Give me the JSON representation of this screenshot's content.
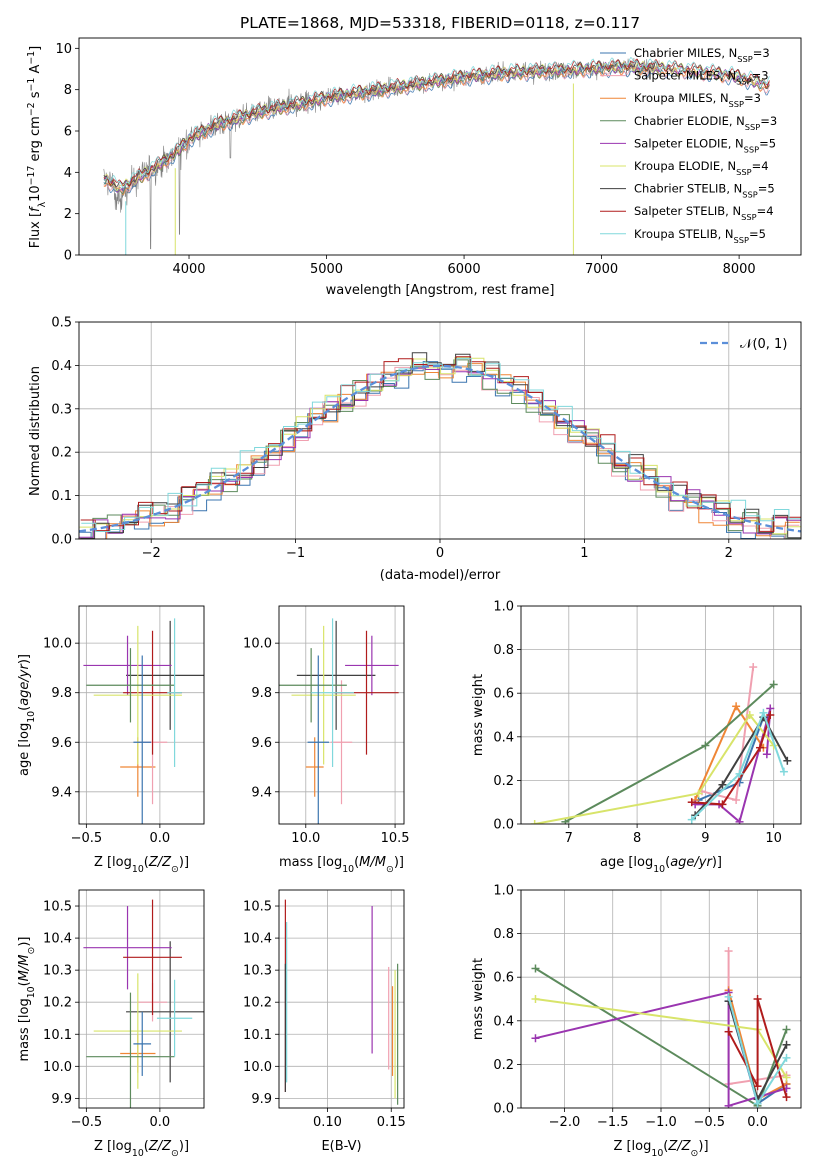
{
  "chart_data": [
    {
      "type": "line",
      "id": "spectrum",
      "title": "PLATE=1868, MJD=53318, FIBERID=0118, z=0.117",
      "xlabel": "wavelength [Angstrom, rest frame]",
      "ylabel": "Flux [f_λ10^−17 erg cm^−2 s^−1 A^−1]",
      "xlim": [
        3200,
        8450
      ],
      "ylim": [
        0,
        10.5
      ],
      "xticks": [
        4000,
        5000,
        6000,
        7000,
        8000
      ],
      "yticks": [
        0,
        2,
        4,
        6,
        8,
        10
      ],
      "legend_position": "right",
      "legend": [
        {
          "label": "Chabrier MILES, N_SSP=3",
          "color": "#3b75af"
        },
        {
          "label": "Salpeter MILES, N_SSP=3",
          "color": "#f0a0b0"
        },
        {
          "label": "Kroupa MILES, N_SSP=3",
          "color": "#ef8636"
        },
        {
          "label": "Chabrier ELODIE, N_SSP=3",
          "color": "#5c8a5c"
        },
        {
          "label": "Salpeter ELODIE, N_SSP=5",
          "color": "#9a35b0"
        },
        {
          "label": "Kroupa ELODIE, N_SSP=4",
          "color": "#d8e46a"
        },
        {
          "label": "Chabrier STELIB, N_SSP=5",
          "color": "#404040"
        },
        {
          "label": "Salpeter STELIB, N_SSP=4",
          "color": "#b01c1c"
        },
        {
          "label": "Kroupa STELIB, N_SSP=5",
          "color": "#80d8dc"
        }
      ],
      "data_color": "#808080",
      "continuum": {
        "x": [
          3380,
          3500,
          3700,
          3900,
          4000,
          4200,
          4500,
          4800,
          5000,
          5200,
          5500,
          5800,
          6000,
          6300,
          6600,
          6900,
          7200,
          7500,
          7800,
          8000,
          8200
        ],
        "y": [
          3.7,
          3.2,
          4.0,
          4.9,
          5.6,
          6.3,
          6.9,
          7.3,
          7.6,
          7.8,
          8.1,
          8.4,
          8.6,
          8.8,
          8.9,
          9.0,
          9.1,
          9.0,
          8.8,
          8.6,
          8.2
        ]
      }
    },
    {
      "type": "step",
      "id": "residuals",
      "xlabel": "(data-model)/error",
      "ylabel": "Normed distribution",
      "xlim": [
        -2.5,
        2.5
      ],
      "ylim": [
        0,
        0.5
      ],
      "xticks": [
        -2,
        -1,
        0,
        1,
        2
      ],
      "xtick_labels": [
        "−2",
        "−1",
        "0",
        "1",
        "2"
      ],
      "yticks": [
        0.0,
        0.1,
        0.2,
        0.3,
        0.4,
        0.5
      ],
      "ytick_labels": [
        "0.0",
        "0.1",
        "0.2",
        "0.3",
        "0.4",
        "0.5"
      ],
      "legend": [
        {
          "label": "𝒩(0, 1)",
          "color": "#5b8fd9",
          "style": "dashed"
        }
      ],
      "bin_width": 0.1
    },
    {
      "type": "errorbar",
      "id": "age-vs-Z",
      "xlabel": "Z [log10(Z/Z⊙)]",
      "ylabel": "age  [log10(age/yr)]",
      "xlim": [
        -0.55,
        0.3
      ],
      "ylim": [
        9.27,
        10.15
      ],
      "xticks": [
        -0.5,
        0.0
      ],
      "xtick_labels": [
        "−0.5",
        "0.0"
      ],
      "yticks": [
        9.4,
        9.6,
        9.8,
        10.0
      ],
      "ytick_labels": [
        "9.4",
        "9.6",
        "9.8",
        "10.0"
      ],
      "points": [
        {
          "x": -0.15,
          "y": 9.5,
          "xerr": 0.12,
          "yerr": 0.12,
          "color": "#ef8636"
        },
        {
          "x": -0.05,
          "y": 9.6,
          "xerr": 0.1,
          "yerr": 0.25,
          "color": "#f0a0b0"
        },
        {
          "x": 0.07,
          "y": 9.87,
          "xerr": 0.3,
          "yerr": 0.22,
          "color": "#404040"
        },
        {
          "x": -0.22,
          "y": 9.91,
          "xerr": 0.3,
          "yerr": 0.12,
          "color": "#9a35b0"
        },
        {
          "x": -0.05,
          "y": 9.8,
          "xerr": 0.2,
          "yerr": 0.25,
          "color": "#b01c1c"
        },
        {
          "x": -0.15,
          "y": 9.79,
          "xerr": 0.3,
          "yerr": 0.28,
          "color": "#d8e46a"
        },
        {
          "x": -0.2,
          "y": 9.83,
          "xerr": 0.3,
          "yerr": 0.15,
          "color": "#5c8a5c"
        },
        {
          "x": 0.1,
          "y": 9.8,
          "xerr": 0.05,
          "yerr": 0.3,
          "color": "#80d8dc"
        },
        {
          "x": -0.12,
          "y": 9.6,
          "xerr": 0.06,
          "yerr": 0.35,
          "color": "#3b75af"
        }
      ]
    },
    {
      "type": "errorbar",
      "id": "age-vs-mass",
      "xlabel": "mass [log10(M/M⊙)]",
      "ylabel": "",
      "xlim": [
        9.85,
        10.55
      ],
      "ylim": [
        9.27,
        10.15
      ],
      "xticks": [
        10.0,
        10.5
      ],
      "xtick_labels": [
        "10.0",
        "10.5"
      ],
      "yticks": [
        9.4,
        9.6,
        9.8,
        10.0
      ],
      "ytick_labels": [
        "9.4",
        "9.6",
        "9.8",
        "10.0"
      ],
      "points": [
        {
          "x": 10.05,
          "y": 9.5,
          "xerr": 0.05,
          "yerr": 0.12,
          "color": "#ef8636"
        },
        {
          "x": 10.2,
          "y": 9.6,
          "xerr": 0.06,
          "yerr": 0.25,
          "color": "#f0a0b0"
        },
        {
          "x": 10.17,
          "y": 9.87,
          "xerr": 0.22,
          "yerr": 0.22,
          "color": "#404040"
        },
        {
          "x": 10.37,
          "y": 9.91,
          "xerr": 0.15,
          "yerr": 0.12,
          "color": "#9a35b0"
        },
        {
          "x": 10.34,
          "y": 9.8,
          "xerr": 0.18,
          "yerr": 0.25,
          "color": "#b01c1c"
        },
        {
          "x": 10.1,
          "y": 9.79,
          "xerr": 0.18,
          "yerr": 0.28,
          "color": "#d8e46a"
        },
        {
          "x": 10.03,
          "y": 9.83,
          "xerr": 0.2,
          "yerr": 0.15,
          "color": "#5c8a5c"
        },
        {
          "x": 10.15,
          "y": 9.8,
          "xerr": 0.12,
          "yerr": 0.3,
          "color": "#80d8dc"
        },
        {
          "x": 10.07,
          "y": 9.6,
          "xerr": 0.06,
          "yerr": 0.35,
          "color": "#3b75af"
        }
      ]
    },
    {
      "type": "line",
      "id": "weight-vs-age",
      "xlabel": "age  [log10(age/yr)]",
      "ylabel": "mass weight",
      "xlim": [
        6.3,
        10.4
      ],
      "ylim": [
        0,
        1
      ],
      "xticks": [
        7,
        8,
        9,
        10
      ],
      "xtick_labels": [
        "7",
        "8",
        "9",
        "10"
      ],
      "yticks": [
        0.0,
        0.2,
        0.4,
        0.6,
        0.8,
        1.0
      ],
      "ytick_labels": [
        "0.0",
        "0.2",
        "0.4",
        "0.6",
        "0.8",
        "1.0"
      ],
      "series": [
        {
          "color": "#3b75af",
          "x": [
            8.9,
            9.5,
            9.85
          ],
          "y": [
            0.11,
            0.19,
            0.49
          ]
        },
        {
          "color": "#f0a0b0",
          "x": [
            8.95,
            9.45,
            9.7
          ],
          "y": [
            0.15,
            0.11,
            0.72
          ]
        },
        {
          "color": "#ef8636",
          "x": [
            8.85,
            9.45,
            9.85
          ],
          "y": [
            0.11,
            0.54,
            0.35
          ]
        },
        {
          "color": "#5c8a5c",
          "x": [
            6.95,
            9.0,
            10.0
          ],
          "y": [
            0.01,
            0.36,
            0.64
          ]
        },
        {
          "color": "#9a35b0",
          "x": [
            8.85,
            9.2,
            9.5,
            9.95,
            9.9
          ],
          "y": [
            0.09,
            0.09,
            0.01,
            0.53,
            0.32
          ]
        },
        {
          "color": "#d8e46a",
          "x": [
            6.5,
            8.9,
            9.65,
            10.0
          ],
          "y": [
            0.0,
            0.14,
            0.5,
            0.36
          ]
        },
        {
          "color": "#404040",
          "x": [
            8.85,
            9.25,
            9.85,
            10.2
          ],
          "y": [
            0.04,
            0.18,
            0.49,
            0.29
          ]
        },
        {
          "color": "#b01c1c",
          "x": [
            8.8,
            9.25,
            9.8,
            9.95
          ],
          "y": [
            0.1,
            0.09,
            0.35,
            0.5
          ]
        },
        {
          "color": "#80d8dc",
          "x": [
            8.8,
            9.5,
            9.85,
            10.15
          ],
          "y": [
            0.02,
            0.23,
            0.51,
            0.24
          ]
        }
      ]
    },
    {
      "type": "errorbar",
      "id": "mass-vs-Z",
      "xlabel": "Z [log10(Z/Z⊙)]",
      "ylabel": "mass [log10(M/M⊙)]",
      "xlim": [
        -0.55,
        0.3
      ],
      "ylim": [
        9.87,
        10.55
      ],
      "xticks": [
        -0.5,
        0.0
      ],
      "xtick_labels": [
        "−0.5",
        "0.0"
      ],
      "yticks": [
        9.9,
        10.0,
        10.1,
        10.2,
        10.3,
        10.4,
        10.5
      ],
      "ytick_labels": [
        "9.9",
        "10.0",
        "10.1",
        "10.2",
        "10.3",
        "10.4",
        "10.5"
      ],
      "points": [
        {
          "x": -0.15,
          "y": 10.04,
          "xerr": 0.12,
          "yerr": 0.06,
          "color": "#ef8636"
        },
        {
          "x": -0.05,
          "y": 10.2,
          "xerr": 0.1,
          "yerr": 0.06,
          "color": "#f0a0b0"
        },
        {
          "x": 0.07,
          "y": 10.17,
          "xerr": 0.3,
          "yerr": 0.22,
          "color": "#404040"
        },
        {
          "x": -0.22,
          "y": 10.37,
          "xerr": 0.3,
          "yerr": 0.13,
          "color": "#9a35b0"
        },
        {
          "x": -0.05,
          "y": 10.34,
          "xerr": 0.2,
          "yerr": 0.18,
          "color": "#b01c1c"
        },
        {
          "x": -0.15,
          "y": 10.11,
          "xerr": 0.3,
          "yerr": 0.18,
          "color": "#d8e46a"
        },
        {
          "x": -0.2,
          "y": 10.03,
          "xerr": 0.3,
          "yerr": 0.2,
          "color": "#5c8a5c"
        },
        {
          "x": 0.1,
          "y": 10.15,
          "xerr": 0.12,
          "yerr": 0.12,
          "color": "#80d8dc"
        },
        {
          "x": -0.12,
          "y": 10.07,
          "xerr": 0.06,
          "yerr": 0.1,
          "color": "#3b75af"
        }
      ]
    },
    {
      "type": "errorbar",
      "id": "mass-vs-ebv",
      "xlabel": "E(B-V)",
      "ylabel": "",
      "xlim": [
        0.062,
        0.16
      ],
      "ylim": [
        9.87,
        10.55
      ],
      "xticks": [
        0.1,
        0.15
      ],
      "xtick_labels": [
        "0.10",
        "0.15"
      ],
      "yticks": [
        9.9,
        10.0,
        10.1,
        10.2,
        10.3,
        10.4,
        10.5
      ],
      "ytick_labels": [
        "9.9",
        "10.0",
        "10.1",
        "10.2",
        "10.3",
        "10.4",
        "10.5"
      ],
      "points": [
        {
          "x": 0.067,
          "y": 10.22,
          "xerr": 0,
          "yerr": 0.3,
          "color": "#b01c1c"
        },
        {
          "x": 0.067,
          "y": 10.12,
          "xerr": 0,
          "yerr": 0.2,
          "color": "#404040"
        },
        {
          "x": 0.068,
          "y": 10.2,
          "xerr": 0,
          "yerr": 0.25,
          "color": "#80d8dc"
        },
        {
          "x": 0.135,
          "y": 10.27,
          "xerr": 0,
          "yerr": 0.23,
          "color": "#9a35b0"
        },
        {
          "x": 0.148,
          "y": 10.15,
          "xerr": 0,
          "yerr": 0.16,
          "color": "#f0a0b0"
        },
        {
          "x": 0.151,
          "y": 10.11,
          "xerr": 0,
          "yerr": 0.14,
          "color": "#ef8636"
        },
        {
          "x": 0.153,
          "y": 10.1,
          "xerr": 0,
          "yerr": 0.2,
          "color": "#d8e46a"
        },
        {
          "x": 0.155,
          "y": 10.1,
          "xerr": 0,
          "yerr": 0.22,
          "color": "#5c8a5c"
        }
      ]
    },
    {
      "type": "line",
      "id": "weight-vs-Z",
      "xlabel": "Z [log10(Z/Z⊙)]",
      "ylabel": "mass weight",
      "xlim": [
        -2.45,
        0.45
      ],
      "ylim": [
        0,
        1
      ],
      "xticks": [
        -2.0,
        -1.5,
        -1.0,
        -0.5,
        0.0
      ],
      "xtick_labels": [
        "−2.0",
        "−1.5",
        "−1.0",
        "−0.5",
        "0.0"
      ],
      "yticks": [
        0.0,
        0.2,
        0.4,
        0.6,
        0.8,
        1.0
      ],
      "ytick_labels": [
        "0.0",
        "0.2",
        "0.4",
        "0.6",
        "0.8",
        "1.0"
      ],
      "series": [
        {
          "color": "#3b75af",
          "x": [
            -0.3,
            0.0,
            0.3
          ],
          "y": [
            0.49,
            0.02,
            0.11
          ]
        },
        {
          "color": "#f0a0b0",
          "x": [
            -0.3,
            -0.3,
            0.3
          ],
          "y": [
            0.72,
            0.11,
            0.15
          ]
        },
        {
          "color": "#ef8636",
          "x": [
            -0.3,
            0.0,
            0.3
          ],
          "y": [
            0.54,
            0.04,
            0.11
          ]
        },
        {
          "color": "#5c8a5c",
          "x": [
            -2.3,
            0.0,
            0.3
          ],
          "y": [
            0.64,
            0.01,
            0.36
          ]
        },
        {
          "color": "#9a35b0",
          "x": [
            -2.3,
            -0.3,
            -0.3,
            0.3
          ],
          "y": [
            0.32,
            0.53,
            0.01,
            0.09
          ]
        },
        {
          "color": "#d8e46a",
          "x": [
            -2.3,
            0.0,
            0.3
          ],
          "y": [
            0.5,
            0.36,
            0.14
          ]
        },
        {
          "color": "#404040",
          "x": [
            -0.3,
            0.0,
            0.3
          ],
          "y": [
            0.49,
            0.04,
            0.29
          ]
        },
        {
          "color": "#b01c1c",
          "x": [
            -0.3,
            0.0,
            0.0,
            0.3
          ],
          "y": [
            0.35,
            0.1,
            0.5,
            0.05
          ]
        },
        {
          "color": "#80d8dc",
          "x": [
            -0.3,
            0.0,
            0.3
          ],
          "y": [
            0.51,
            0.02,
            0.23
          ]
        }
      ]
    }
  ]
}
